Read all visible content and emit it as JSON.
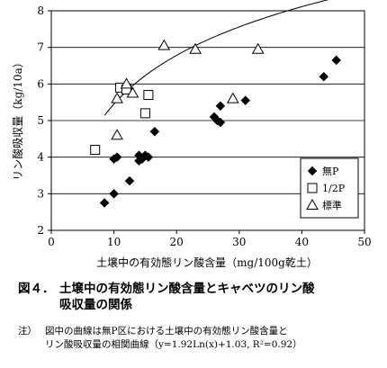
{
  "chart_data": {
    "type": "scatter",
    "xlabel": "土壌中の有効態リン酸含量（mg/100g乾土）",
    "ylabel": "リン酸吸収量（kg/10a）",
    "xlim": [
      0,
      50
    ],
    "ylim": [
      2,
      8
    ],
    "x_ticks": [
      "0",
      "10",
      "20",
      "30",
      "40",
      "50"
    ],
    "y_ticks": [
      "2",
      "3",
      "4",
      "5",
      "6",
      "7",
      "8"
    ],
    "grid": "horizontal",
    "legend_position": "bottom-right",
    "series": [
      {
        "name": "無P",
        "marker": "diamond-filled",
        "points": [
          [
            8.5,
            2.75
          ],
          [
            10,
            3.0
          ],
          [
            10,
            3.95
          ],
          [
            10.5,
            4.0
          ],
          [
            12.5,
            3.35
          ],
          [
            14,
            3.9
          ],
          [
            14,
            4.05
          ],
          [
            14.5,
            3.95
          ],
          [
            15,
            4.05
          ],
          [
            15.5,
            4.0
          ],
          [
            16.5,
            4.7
          ],
          [
            26,
            5.1
          ],
          [
            26.5,
            5.0
          ],
          [
            27,
            4.95
          ],
          [
            27,
            5.4
          ],
          [
            31,
            5.55
          ],
          [
            43.5,
            6.2
          ],
          [
            45.5,
            6.65
          ]
        ]
      },
      {
        "name": "1/2P",
        "marker": "square-open",
        "points": [
          [
            7,
            4.2
          ],
          [
            11,
            5.9
          ],
          [
            12,
            5.85
          ],
          [
            15,
            5.2
          ],
          [
            15.5,
            5.7
          ]
        ]
      },
      {
        "name": "標準",
        "marker": "triangle-open",
        "points": [
          [
            10.5,
            4.6
          ],
          [
            10.5,
            5.6
          ],
          [
            12,
            6.0
          ],
          [
            13,
            5.75
          ],
          [
            18,
            7.05
          ],
          [
            23,
            6.95
          ],
          [
            29,
            5.6
          ],
          [
            33,
            6.95
          ]
        ]
      }
    ],
    "fit_curve": {
      "equation": "y=1.92Ln(x)+1.03",
      "a": 1.92,
      "b": 1.03,
      "x_range": [
        8.5,
        46
      ]
    }
  },
  "caption": {
    "figure_number": "図４．",
    "title_line1": "土壌中の有効態リン酸含量とキャベツのリン酸",
    "title_line2": "吸収量の関係"
  },
  "note": {
    "label": "注）",
    "line1": "図中の曲線は無P区における土壌中の有効態リン酸含量と",
    "line2": "リン酸吸収量の相関曲線（y=1.92Ln(x)+1.03, R²=0.92）"
  }
}
